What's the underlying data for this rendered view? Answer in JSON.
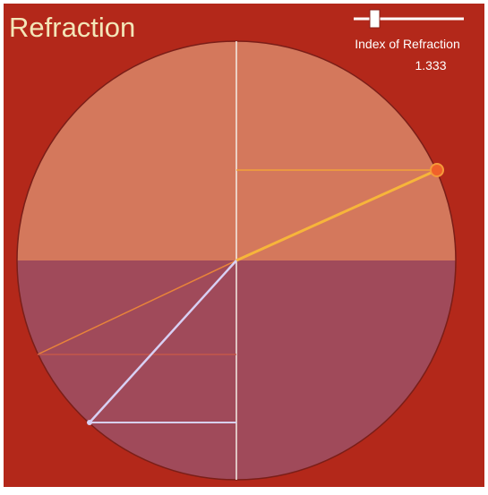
{
  "header": {
    "title": "Refraction"
  },
  "slider": {
    "label": "Index of Refraction",
    "value": "1.333"
  }
}
